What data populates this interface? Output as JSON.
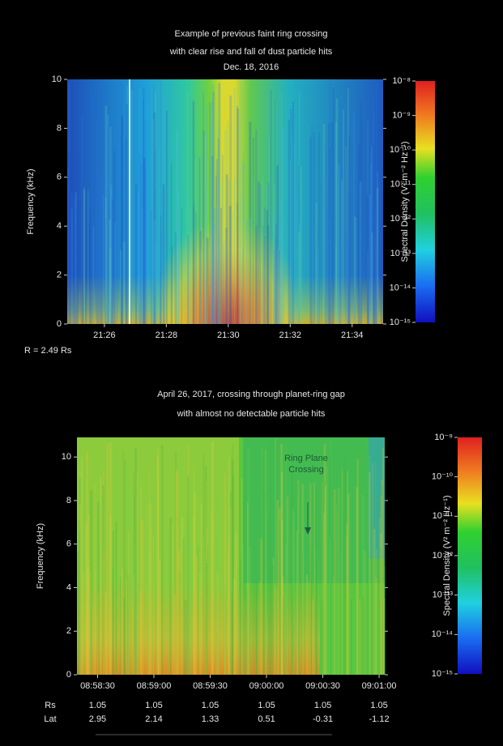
{
  "chart_data": [
    {
      "type": "spectrogram",
      "title": [
        "Example of previous faint ring crossing",
        "with clear rise and fall of dust particle hits"
      ],
      "subtitle": "Dec. 18, 2016",
      "ylabel": "Frequency (kHz)",
      "ylim": [
        0,
        10
      ],
      "yticks": [
        0,
        2,
        4,
        6,
        8,
        10
      ],
      "xlim": [
        1284.8,
        1295
      ],
      "xticks": [
        {
          "value": 1286,
          "label": "21:26"
        },
        {
          "value": 1288,
          "label": "21:28"
        },
        {
          "value": 1290,
          "label": "21:30"
        },
        {
          "value": 1292,
          "label": "21:32"
        },
        {
          "value": 1294,
          "label": "21:34"
        }
      ],
      "annotation": "R = 2.49 Rs",
      "colorbar_label": "Spectral Density (V² m⁻² Hz⁻¹)",
      "clim": [
        1e-15,
        1e-08
      ],
      "cticks": [
        {
          "value": 1e-08,
          "label": "10⁻⁸"
        },
        {
          "value": 1e-09,
          "label": "10⁻⁹"
        },
        {
          "value": 1e-10,
          "label": "10⁻¹⁰"
        },
        {
          "value": 1e-11,
          "label": "10⁻¹¹"
        },
        {
          "value": 1e-12,
          "label": "10⁻¹²"
        },
        {
          "value": 1e-13,
          "label": "10⁻¹³"
        },
        {
          "value": 1e-14,
          "label": "10⁻¹⁴"
        },
        {
          "value": 1e-15,
          "label": "10⁻¹⁵"
        }
      ]
    },
    {
      "type": "spectrogram",
      "title": [
        "April 26, 2017, crossing through planet-ring gap",
        "with almost no detectable particle hits"
      ],
      "ylabel": "Frequency (kHz)",
      "ylim": [
        0,
        10.9
      ],
      "yticks": [
        0,
        2,
        4,
        6,
        8,
        10
      ],
      "xlim": [
        32299,
        32463
      ],
      "xticks": [
        {
          "value": 32310,
          "label": "08:58:30"
        },
        {
          "value": 32340,
          "label": "08:59:00"
        },
        {
          "value": 32370,
          "label": "08:59:30"
        },
        {
          "value": 32400,
          "label": "09:00:00"
        },
        {
          "value": 32430,
          "label": "09:00:30"
        },
        {
          "value": 32460,
          "label": "09:01:00"
        }
      ],
      "annotation": [
        "Ring Plane",
        "Crossing"
      ],
      "colorbar_label": "Spectral Density (V² m⁻² Hz⁻¹)",
      "clim": [
        1e-15,
        1e-09
      ],
      "cticks": [
        {
          "value": 1e-09,
          "label": "10⁻⁹"
        },
        {
          "value": 1e-10,
          "label": "10⁻¹⁰"
        },
        {
          "value": 1e-11,
          "label": "10⁻¹¹"
        },
        {
          "value": 1e-12,
          "label": "10⁻¹²"
        },
        {
          "value": 1e-13,
          "label": "10⁻¹³"
        },
        {
          "value": 1e-14,
          "label": "10⁻¹⁴"
        },
        {
          "value": 1e-15,
          "label": "10⁻¹⁵"
        }
      ],
      "rows": [
        {
          "label": "Rs",
          "values": [
            1.05,
            1.05,
            1.05,
            1.05,
            1.05,
            1.05
          ]
        },
        {
          "label": "Lat",
          "values": [
            2.95,
            2.14,
            1.33,
            0.51,
            -0.31,
            -1.12
          ]
        }
      ]
    }
  ]
}
